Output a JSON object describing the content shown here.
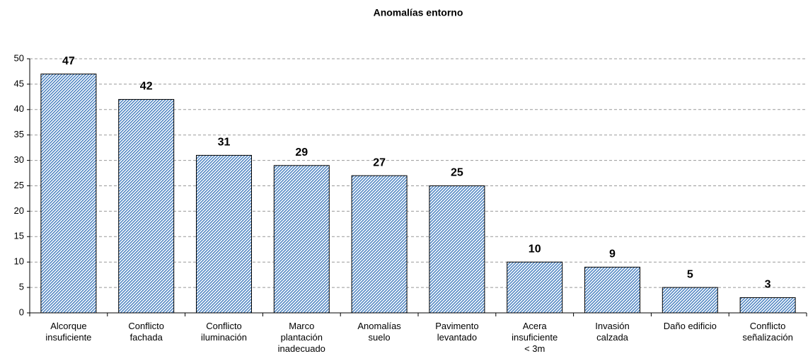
{
  "chart_data": {
    "type": "bar",
    "title": "Anomalías entorno",
    "categories": [
      [
        "Alcorque",
        "insuficiente"
      ],
      [
        "Conflicto",
        "fachada"
      ],
      [
        "Conflicto",
        "iluminación"
      ],
      [
        "Marco",
        "plantación",
        "inadecuado"
      ],
      [
        "Anomalías",
        "suelo"
      ],
      [
        "Pavimento",
        "levantado"
      ],
      [
        "Acera",
        "insuficiente",
        "< 3m"
      ],
      [
        "Invasión",
        "calzada"
      ],
      [
        "Daño edificio"
      ],
      [
        "Conflicto",
        "señalización"
      ]
    ],
    "values": [
      47,
      42,
      31,
      29,
      27,
      25,
      10,
      9,
      5,
      3
    ],
    "color": "#2f6fb8",
    "ylim": [
      0,
      50
    ],
    "yticks": [
      0,
      5,
      10,
      15,
      20,
      25,
      30,
      35,
      40,
      45,
      50
    ],
    "grid": true
  }
}
